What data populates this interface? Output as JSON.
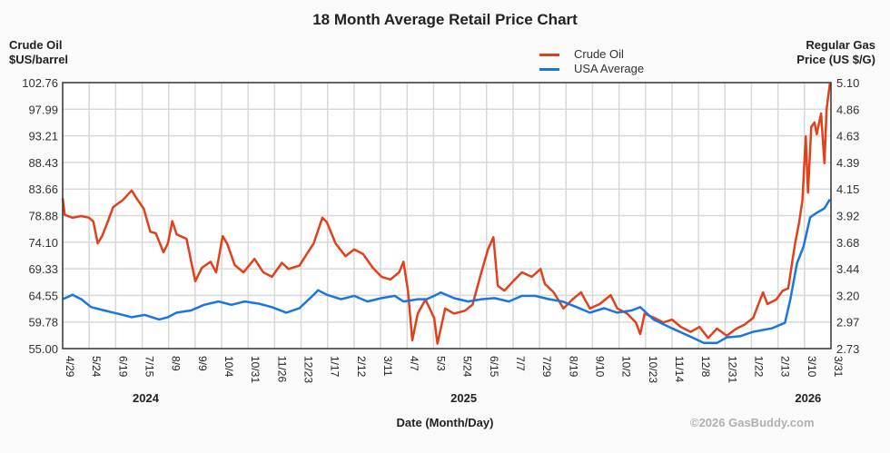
{
  "chart_data": {
    "type": "line",
    "title": "18 Month Average Retail Price Chart",
    "xlabel": "Date (Month/Day)",
    "ylabel_left": [
      "Crude Oil",
      "$US/barrel"
    ],
    "ylabel_right": [
      "Regular Gas",
      "Price (US $/G)"
    ],
    "credit": "©2026 GasBuddy.com",
    "grid": true,
    "legend_position": "top-right",
    "x_unit": "days since 4/29/2024",
    "xlim": [
      0,
      701
    ],
    "ylim_left": [
      55.0,
      102.76
    ],
    "ylim_right": [
      2.73,
      5.1
    ],
    "y_ticks_left": [
      "55.00",
      "59.78",
      "64.55",
      "69.33",
      "74.10",
      "78.88",
      "83.66",
      "88.43",
      "93.21",
      "97.99",
      "102.76"
    ],
    "y_ticks_right": [
      "2.73",
      "2.97",
      "3.20",
      "3.44",
      "3.68",
      "3.92",
      "4.15",
      "4.39",
      "4.63",
      "4.86",
      "5.10"
    ],
    "x_ticks": [
      "4/29",
      "5/24",
      "6/19",
      "7/15",
      "8/9",
      "9/9",
      "10/4",
      "10/31",
      "11/26",
      "12/23",
      "1/17",
      "2/12",
      "3/11",
      "4/7",
      "5/3",
      "5/24",
      "6/15",
      "7/7",
      "7/29",
      "8/19",
      "9/10",
      "10/2",
      "10/23",
      "11/14",
      "12/8",
      "12/31",
      "1/22",
      "2/13",
      "3/10",
      "3/31"
    ],
    "year_labels": [
      {
        "label": "2024",
        "at_tick": "7/15"
      },
      {
        "label": "2025",
        "at_tick": "5/24"
      },
      {
        "label": "2026",
        "at_tick": "3/10"
      }
    ],
    "series": [
      {
        "name": "Crude Oil",
        "axis": "left",
        "color": "#e0401a",
        "points": [
          [
            0,
            82.0
          ],
          [
            2,
            79.0
          ],
          [
            9,
            78.5
          ],
          [
            17,
            78.8
          ],
          [
            24,
            78.5
          ],
          [
            28,
            77.8
          ],
          [
            32,
            73.9
          ],
          [
            36,
            75.2
          ],
          [
            41,
            77.7
          ],
          [
            46,
            80.4
          ],
          [
            55,
            81.7
          ],
          [
            63,
            83.4
          ],
          [
            67,
            82.1
          ],
          [
            74,
            80.1
          ],
          [
            80,
            76.0
          ],
          [
            85,
            75.7
          ],
          [
            92,
            72.3
          ],
          [
            96,
            73.9
          ],
          [
            100,
            77.9
          ],
          [
            104,
            75.5
          ],
          [
            113,
            74.7
          ],
          [
            121,
            67.1
          ],
          [
            127,
            69.5
          ],
          [
            135,
            70.6
          ],
          [
            140,
            68.7
          ],
          [
            146,
            75.2
          ],
          [
            150,
            73.9
          ],
          [
            157,
            70.0
          ],
          [
            165,
            68.7
          ],
          [
            175,
            71.1
          ],
          [
            183,
            68.7
          ],
          [
            191,
            67.9
          ],
          [
            200,
            70.4
          ],
          [
            206,
            69.3
          ],
          [
            216,
            69.9
          ],
          [
            229,
            73.9
          ],
          [
            237,
            78.5
          ],
          [
            241,
            77.7
          ],
          [
            249,
            73.9
          ],
          [
            258,
            71.6
          ],
          [
            266,
            72.8
          ],
          [
            274,
            72.0
          ],
          [
            283,
            69.5
          ],
          [
            291,
            67.9
          ],
          [
            299,
            67.4
          ],
          [
            307,
            68.7
          ],
          [
            311,
            70.6
          ],
          [
            315,
            65.4
          ],
          [
            319,
            56.5
          ],
          [
            324,
            61.3
          ],
          [
            331,
            63.8
          ],
          [
            339,
            60.5
          ],
          [
            342,
            55.9
          ],
          [
            349,
            62.2
          ],
          [
            357,
            61.3
          ],
          [
            367,
            61.8
          ],
          [
            374,
            62.9
          ],
          [
            382,
            68.7
          ],
          [
            388,
            72.8
          ],
          [
            393,
            75.0
          ],
          [
            397,
            66.3
          ],
          [
            403,
            65.4
          ],
          [
            411,
            67.1
          ],
          [
            419,
            68.7
          ],
          [
            428,
            67.9
          ],
          [
            436,
            69.3
          ],
          [
            440,
            66.6
          ],
          [
            448,
            65.1
          ],
          [
            457,
            62.2
          ],
          [
            465,
            63.8
          ],
          [
            473,
            65.1
          ],
          [
            481,
            62.2
          ],
          [
            490,
            63.0
          ],
          [
            500,
            64.6
          ],
          [
            506,
            62.2
          ],
          [
            515,
            61.3
          ],
          [
            523,
            59.7
          ],
          [
            527,
            57.6
          ],
          [
            531,
            61.3
          ],
          [
            540,
            60.5
          ],
          [
            548,
            59.7
          ],
          [
            556,
            60.2
          ],
          [
            564,
            58.9
          ],
          [
            573,
            58.0
          ],
          [
            581,
            58.9
          ],
          [
            589,
            56.9
          ],
          [
            597,
            58.6
          ],
          [
            606,
            57.3
          ],
          [
            614,
            58.5
          ],
          [
            622,
            59.3
          ],
          [
            630,
            60.5
          ],
          [
            639,
            65.1
          ],
          [
            643,
            63.0
          ],
          [
            651,
            63.8
          ],
          [
            657,
            65.4
          ],
          [
            662,
            65.8
          ],
          [
            668,
            73.6
          ],
          [
            672,
            77.7
          ],
          [
            675,
            81.7
          ],
          [
            678,
            93.1
          ],
          [
            680,
            83.0
          ],
          [
            683,
            94.8
          ],
          [
            686,
            95.6
          ],
          [
            688,
            93.5
          ],
          [
            692,
            97.2
          ],
          [
            695,
            88.3
          ],
          [
            697,
            98.0
          ],
          [
            700,
            102.6
          ]
        ]
      },
      {
        "name": "USA Average",
        "axis": "right",
        "color": "#1a75e0",
        "points": [
          [
            0,
            3.17
          ],
          [
            9,
            3.21
          ],
          [
            17,
            3.17
          ],
          [
            26,
            3.1
          ],
          [
            38,
            3.07
          ],
          [
            51,
            3.04
          ],
          [
            63,
            3.01
          ],
          [
            75,
            3.03
          ],
          [
            88,
            2.99
          ],
          [
            96,
            3.01
          ],
          [
            104,
            3.05
          ],
          [
            117,
            3.07
          ],
          [
            129,
            3.12
          ],
          [
            142,
            3.15
          ],
          [
            154,
            3.12
          ],
          [
            166,
            3.15
          ],
          [
            179,
            3.13
          ],
          [
            191,
            3.1
          ],
          [
            204,
            3.05
          ],
          [
            216,
            3.09
          ],
          [
            229,
            3.21
          ],
          [
            233,
            3.25
          ],
          [
            241,
            3.21
          ],
          [
            254,
            3.17
          ],
          [
            266,
            3.2
          ],
          [
            278,
            3.15
          ],
          [
            291,
            3.18
          ],
          [
            303,
            3.2
          ],
          [
            311,
            3.15
          ],
          [
            324,
            3.17
          ],
          [
            332,
            3.17
          ],
          [
            339,
            3.2
          ],
          [
            345,
            3.23
          ],
          [
            357,
            3.18
          ],
          [
            370,
            3.15
          ],
          [
            382,
            3.17
          ],
          [
            394,
            3.18
          ],
          [
            407,
            3.15
          ],
          [
            419,
            3.2
          ],
          [
            431,
            3.2
          ],
          [
            444,
            3.17
          ],
          [
            456,
            3.15
          ],
          [
            469,
            3.1
          ],
          [
            481,
            3.05
          ],
          [
            494,
            3.09
          ],
          [
            506,
            3.05
          ],
          [
            519,
            3.07
          ],
          [
            527,
            3.1
          ],
          [
            539,
            2.99
          ],
          [
            556,
            2.91
          ],
          [
            572,
            2.84
          ],
          [
            585,
            2.78
          ],
          [
            597,
            2.78
          ],
          [
            606,
            2.83
          ],
          [
            618,
            2.84
          ],
          [
            630,
            2.88
          ],
          [
            647,
            2.91
          ],
          [
            659,
            2.96
          ],
          [
            664,
            3.17
          ],
          [
            670,
            3.49
          ],
          [
            676,
            3.64
          ],
          [
            682,
            3.9
          ],
          [
            688,
            3.94
          ],
          [
            695,
            3.98
          ],
          [
            700,
            4.06
          ]
        ]
      }
    ]
  }
}
